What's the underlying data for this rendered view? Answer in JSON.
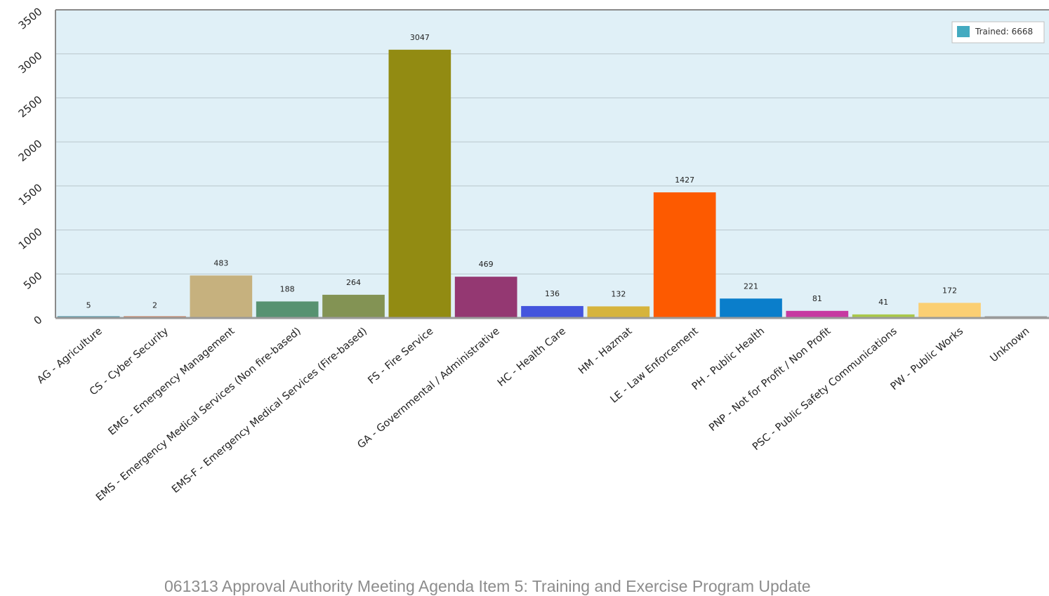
{
  "chart_data": {
    "type": "bar",
    "categories": [
      "AG - Agriculture",
      "CS - Cyber Security",
      "EMG - Emergency Management",
      "EMS - Emergency Medical Services (Non fire-based)",
      "EMS-F - Emergency Medical Services (Fire-based)",
      "FS - Fire Service",
      "GA - Governmental / Administrative",
      "HC - Health Care",
      "HM - Hazmat",
      "LE - Law Enforcement",
      "PH - Public Health",
      "PNP - Not for Profit / Non Profit",
      "PSC - Public Safety Communications",
      "PW - Public Works",
      "Unknown"
    ],
    "values": [
      5,
      2,
      483,
      188,
      264,
      3047,
      469,
      136,
      132,
      1427,
      221,
      81,
      41,
      172,
      0
    ],
    "value_labels": [
      "5",
      "2",
      "483",
      "188",
      "264",
      "3047",
      "469",
      "136",
      "132",
      "1427",
      "221",
      "81",
      "41",
      "172",
      ""
    ],
    "colors": [
      "#4a8fa0",
      "#c77b5a",
      "#c6b17e",
      "#579271",
      "#839354",
      "#928b12",
      "#943872",
      "#4455dd",
      "#d6b43c",
      "#fd5a00",
      "#0a7ecb",
      "#c63aa1",
      "#a9c84a",
      "#fbcf73",
      "#9a9a9a"
    ],
    "yticks": [
      "0",
      "500",
      "1000",
      "1500",
      "2000",
      "2500",
      "3000",
      "3500"
    ],
    "ylim": [
      0,
      3500
    ],
    "grid": true,
    "legend": {
      "label": "Trained: 6668",
      "color": "#43aac0",
      "position": "top-right"
    },
    "plot_background": "#e0f0f7"
  },
  "footer": {
    "text": "061313 Approval Authority Meeting Agenda Item 5: Training and Exercise Program Update"
  }
}
